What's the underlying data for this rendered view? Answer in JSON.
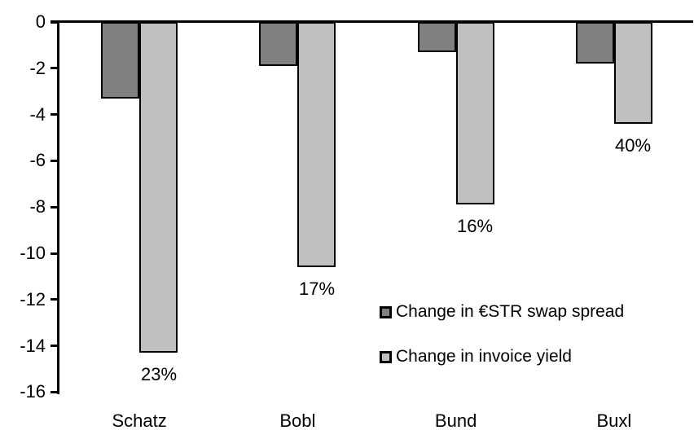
{
  "chart_data": {
    "type": "bar",
    "orientation": "vertical-negative",
    "title": "",
    "xlabel": "",
    "ylabel": "",
    "categories": [
      "Schatz",
      "Bobl",
      "Bund",
      "Buxl"
    ],
    "series": [
      {
        "name": "Change in €STR swap spread",
        "color": "#808080",
        "values": [
          -3.3,
          -1.9,
          -1.3,
          -1.8
        ]
      },
      {
        "name": "Change in invoice yield",
        "color": "#bfbfbf",
        "values": [
          -14.3,
          -10.6,
          -7.9,
          -4.4
        ]
      }
    ],
    "bar_labels": {
      "series_name": "Change in invoice yield",
      "values": [
        "23%",
        "17%",
        "16%",
        "40%"
      ]
    },
    "ylim": [
      -16,
      0
    ],
    "yticks": [
      0,
      -2,
      -4,
      -6,
      -8,
      -10,
      -12,
      -14,
      -16
    ],
    "grid": false,
    "legend": {
      "position": "inside-right"
    },
    "bar_border_color": "#000000",
    "axis_color": "#000000",
    "background_color": "#ffffff"
  }
}
